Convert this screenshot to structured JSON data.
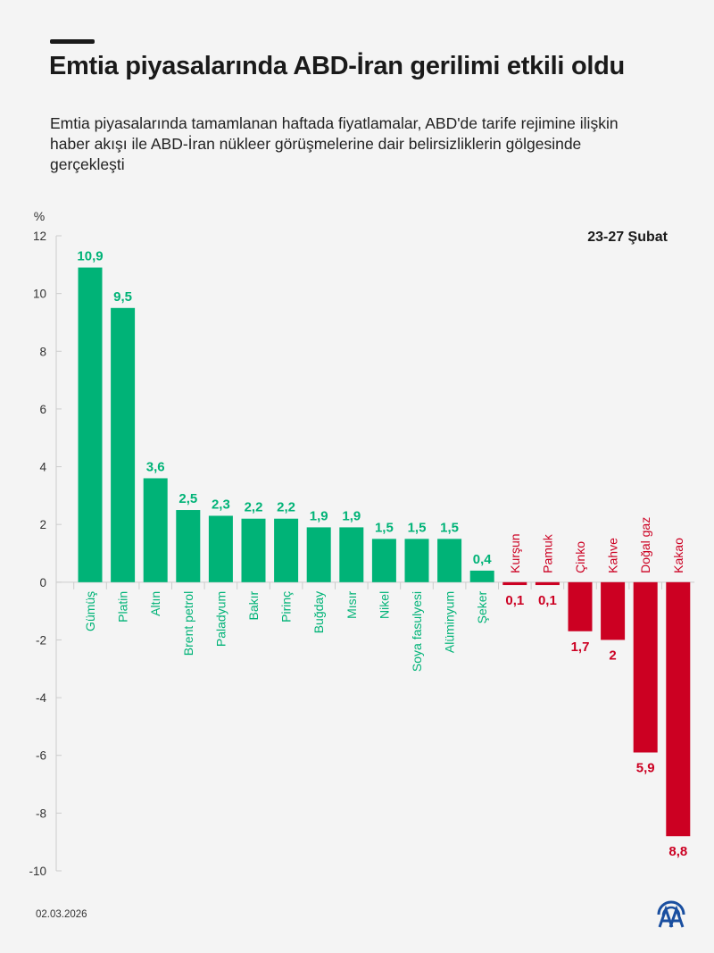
{
  "header": {
    "title": "Emtia piyasalarında ABD-İran gerilimi etkili oldu",
    "subtitle": "Emtia piyasalarında tamamlanan haftada fiyatlamalar, ABD'de tarife rejimine ilişkin haber akışı ile ABD-İran nükleer görüşmelerine dair belirsizliklerin gölgesinde gerçekleşti"
  },
  "period_label": "23-27 Şubat",
  "footer": {
    "date": "02.03.2026",
    "logo": "aa-logo-icon"
  },
  "colors": {
    "positive": "#00b377",
    "negative": "#cc0022",
    "axis": "#cccccc",
    "text": "#1a1a1a"
  },
  "chart_data": {
    "type": "bar",
    "title": "Emtia piyasalarında ABD-İran gerilimi etkili oldu",
    "xlabel": "",
    "ylabel": "%",
    "ylim": [
      -10,
      12
    ],
    "yticks": [
      12,
      10,
      8,
      6,
      4,
      2,
      0,
      -2,
      -4,
      -6,
      -8,
      -10
    ],
    "grid": false,
    "legend": "none",
    "categories": [
      "Gümüş",
      "Platin",
      "Altın",
      "Brent petrol",
      "Paladyum",
      "Bakır",
      "Pirinç",
      "Buğday",
      "Mısır",
      "Nikel",
      "Soya fasulyesi",
      "Alüminyum",
      "Şeker",
      "Kurşun",
      "Pamuk",
      "Çinko",
      "Kahve",
      "Doğal gaz",
      "Kakao"
    ],
    "values": [
      10.9,
      9.5,
      3.6,
      2.5,
      2.3,
      2.2,
      2.2,
      1.9,
      1.9,
      1.5,
      1.5,
      1.5,
      0.4,
      -0.1,
      -0.1,
      -1.7,
      -2,
      -5.9,
      -8.8
    ],
    "value_labels": [
      "10,9",
      "9,5",
      "3,6",
      "2,5",
      "2,3",
      "2,2",
      "2,2",
      "1,9",
      "1,9",
      "1,5",
      "1,5",
      "1,5",
      "0,4",
      "0,1",
      "0,1",
      "1,7",
      "2",
      "5,9",
      "8,8"
    ]
  }
}
